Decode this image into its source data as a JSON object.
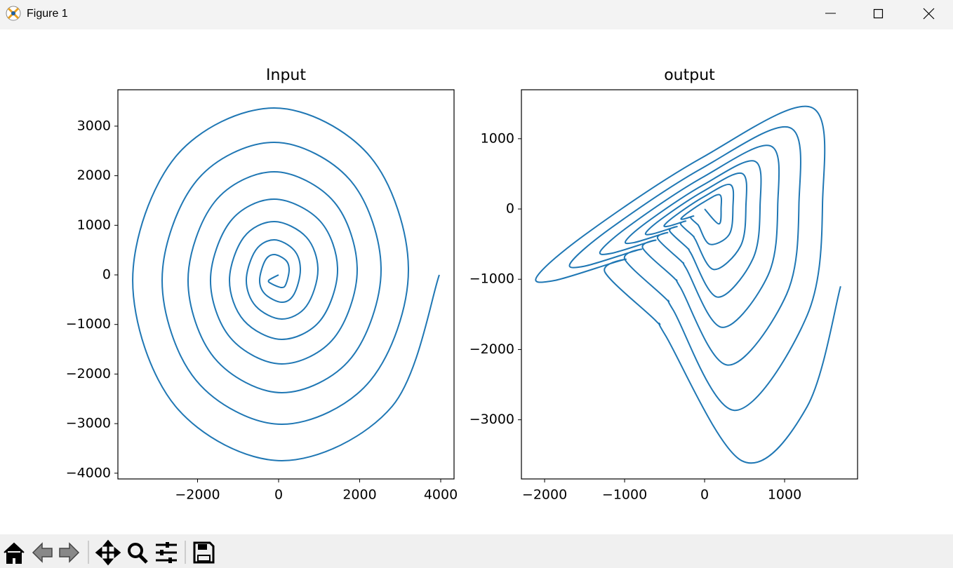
{
  "window": {
    "title": "Figure 1"
  },
  "chart_data": [
    {
      "type": "line",
      "title": "Input",
      "x": [
        0,
        -242,
        -171,
        80,
        184,
        260,
        184,
        -110,
        -331,
        -468,
        -331,
        80,
        380,
        537,
        380,
        -110,
        -563,
        -797,
        -563,
        80,
        686,
        970,
        686,
        -110,
        -857,
        -1212,
        -857,
        80,
        1029,
        1455,
        1029,
        -110,
        -1188,
        -1680,
        -1188,
        80,
        1371,
        1939,
        1371,
        -110,
        -1580,
        -2234,
        -1580,
        80,
        1787,
        2528,
        1787,
        -110,
        -2032,
        -2874,
        -2032,
        80,
        2265,
        3203,
        2265,
        -110,
        -2545,
        -3600,
        -2545,
        80,
        2803,
        3965
      ],
      "series": [
        {
          "color": "#1f77b4",
          "values": [
            0,
            -110,
            -180,
            -255,
            -180,
            100,
            290,
            410,
            290,
            -110,
            -390,
            -552,
            -390,
            100,
            500,
            707,
            500,
            -110,
            -630,
            -891,
            -630,
            100,
            760,
            1075,
            760,
            -110,
            -920,
            -1301,
            -920,
            100,
            1080,
            1527,
            1080,
            -110,
            -1270,
            -1796,
            -1270,
            100,
            1470,
            2079,
            1470,
            -110,
            -1680,
            -2376,
            -1680,
            100,
            1890,
            2673,
            1890,
            -110,
            -2130,
            -3013,
            -2130,
            100,
            2380,
            3366,
            2380,
            -110,
            -2650,
            -3748,
            -2650,
            0
          ]
        }
      ],
      "xlim": [
        -3965,
        4329
      ],
      "ylim": [
        -4116,
        3734
      ],
      "xticks": [
        {
          "value": -2000,
          "label": "−2000"
        },
        0,
        2000,
        4000
      ],
      "yticks": [
        {
          "value": -4000,
          "label": "−4000"
        },
        {
          "value": -3000,
          "label": "−3000"
        },
        {
          "value": -2000,
          "label": "−2000"
        },
        {
          "value": -1000,
          "label": "−1000"
        },
        0,
        1000,
        2000,
        3000
      ]
    },
    {
      "type": "line",
      "title": "output",
      "x": [
        0,
        179,
        206,
        187,
        -5,
        -201,
        -292,
        -263,
        -140,
        -174,
        -85,
        -69,
        65,
        307,
        354,
        320,
        -8,
        -345,
        -501,
        -450,
        -240,
        -299,
        -145,
        -118,
        112,
        448,
        516,
        467,
        -12,
        -504,
        -731,
        -657,
        -350,
        -436,
        -212,
        -172,
        163,
        602,
        693,
        627,
        -16,
        -676,
        -981,
        -882,
        -470,
        -586,
        -284,
        -231,
        219,
        794,
        914,
        826,
        -22,
        -892,
        -1295,
        -1164,
        -620,
        -773,
        -375,
        -304,
        288,
        1025,
        1179,
        1066,
        -28,
        -1151,
        -1670,
        -1502,
        -800,
        -997,
        -484,
        -393,
        372,
        1281,
        1474,
        1333,
        -35,
        -1439,
        -2088,
        -1877,
        -1000,
        -1246,
        -605,
        -491,
        465,
        1281,
        1700
      ],
      "series": [
        {
          "color": "#1f77b4",
          "values": [
            0,
            -212,
            11,
            203,
            102,
            -45,
            -133,
            -143,
            -101,
            -126,
            -224,
            -251,
            -502,
            -364,
            19,
            347,
            175,
            -77,
            -228,
            -244,
            -173,
            -216,
            -383,
            -431,
            -860,
            -531,
            28,
            506,
            255,
            -112,
            -332,
            -356,
            -252,
            -314,
            -559,
            -629,
            -1254,
            -713,
            38,
            680,
            343,
            -150,
            -446,
            -478,
            -338,
            -422,
            -751,
            -844,
            -1684,
            -941,
            50,
            897,
            452,
            -198,
            -588,
            -631,
            -446,
            -557,
            -990,
            -1114,
            -2221,
            -1214,
            64,
            1158,
            583,
            -255,
            -758,
            -814,
            -575,
            -718,
            -1278,
            -1437,
            -2866,
            -1517,
            80,
            1447,
            729,
            -319,
            -948,
            -1018,
            -719,
            -898,
            -1597,
            -1796,
            -3583,
            -2814,
            -1100
          ]
        }
      ],
      "xlim": [
        -2290,
        1912
      ],
      "ylim": [
        -3842,
        1697
      ],
      "xticks": [
        {
          "value": -2000,
          "label": "−2000"
        },
        {
          "value": -1000,
          "label": "−1000"
        },
        0,
        1000
      ],
      "yticks": [
        {
          "value": -3000,
          "label": "−3000"
        },
        {
          "value": -2000,
          "label": "−2000"
        },
        {
          "value": -1000,
          "label": "−1000"
        },
        0,
        1000
      ]
    }
  ]
}
